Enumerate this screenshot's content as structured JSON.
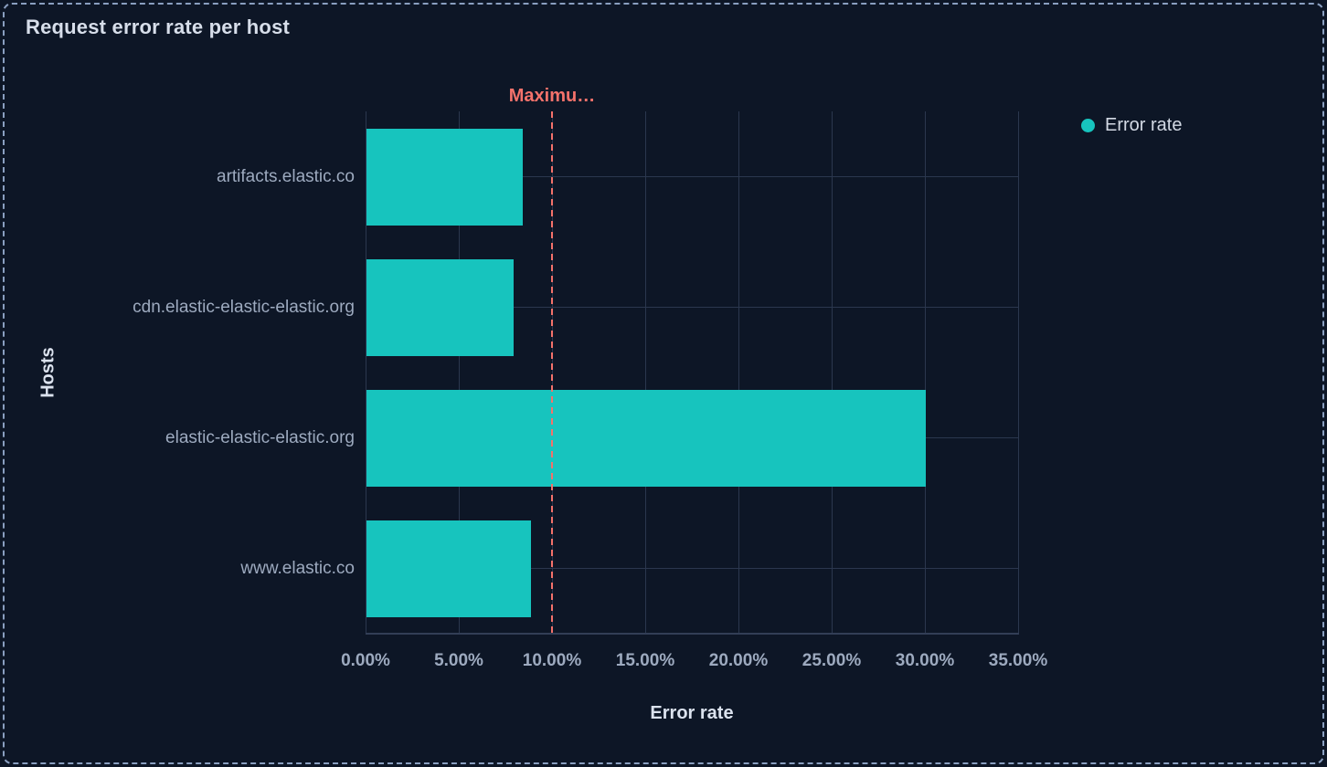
{
  "panel": {
    "title": "Request error rate per host"
  },
  "chart_data": {
    "type": "bar",
    "orientation": "horizontal",
    "title": "Request error rate per host",
    "xlabel": "Error rate",
    "ylabel": "Hosts",
    "categories": [
      "artifacts.elastic.co",
      "cdn.elastic-elastic-elastic.org",
      "elastic-elastic-elastic.org",
      "www.elastic.co"
    ],
    "series": [
      {
        "name": "Error rate",
        "values": [
          8.4,
          7.9,
          30.0,
          8.8
        ],
        "unit": "%",
        "color": "#17c4be"
      }
    ],
    "xlim": [
      0,
      35
    ],
    "x_ticks": [
      {
        "value": 0,
        "label": "0.00%"
      },
      {
        "value": 5,
        "label": "5.00%"
      },
      {
        "value": 10,
        "label": "10.00%"
      },
      {
        "value": 15,
        "label": "15.00%"
      },
      {
        "value": 20,
        "label": "20.00%"
      },
      {
        "value": 25,
        "label": "25.00%"
      },
      {
        "value": 30,
        "label": "30.00%"
      },
      {
        "value": 35,
        "label": "35.00%"
      }
    ],
    "threshold": {
      "value": 10,
      "label": "Maximu…",
      "color": "#f4726b"
    },
    "grid": true,
    "legend_position": "right"
  },
  "colors": {
    "background": "#0d1626",
    "bar": "#17c4be",
    "threshold": "#f4726b",
    "grid_line": "#2b374e",
    "axis_line": "#323e56",
    "title_text": "#d7deea",
    "label_text": "#9daabf",
    "legend_text": "#d3d9e4",
    "panel_border": "#8a9fc0"
  }
}
